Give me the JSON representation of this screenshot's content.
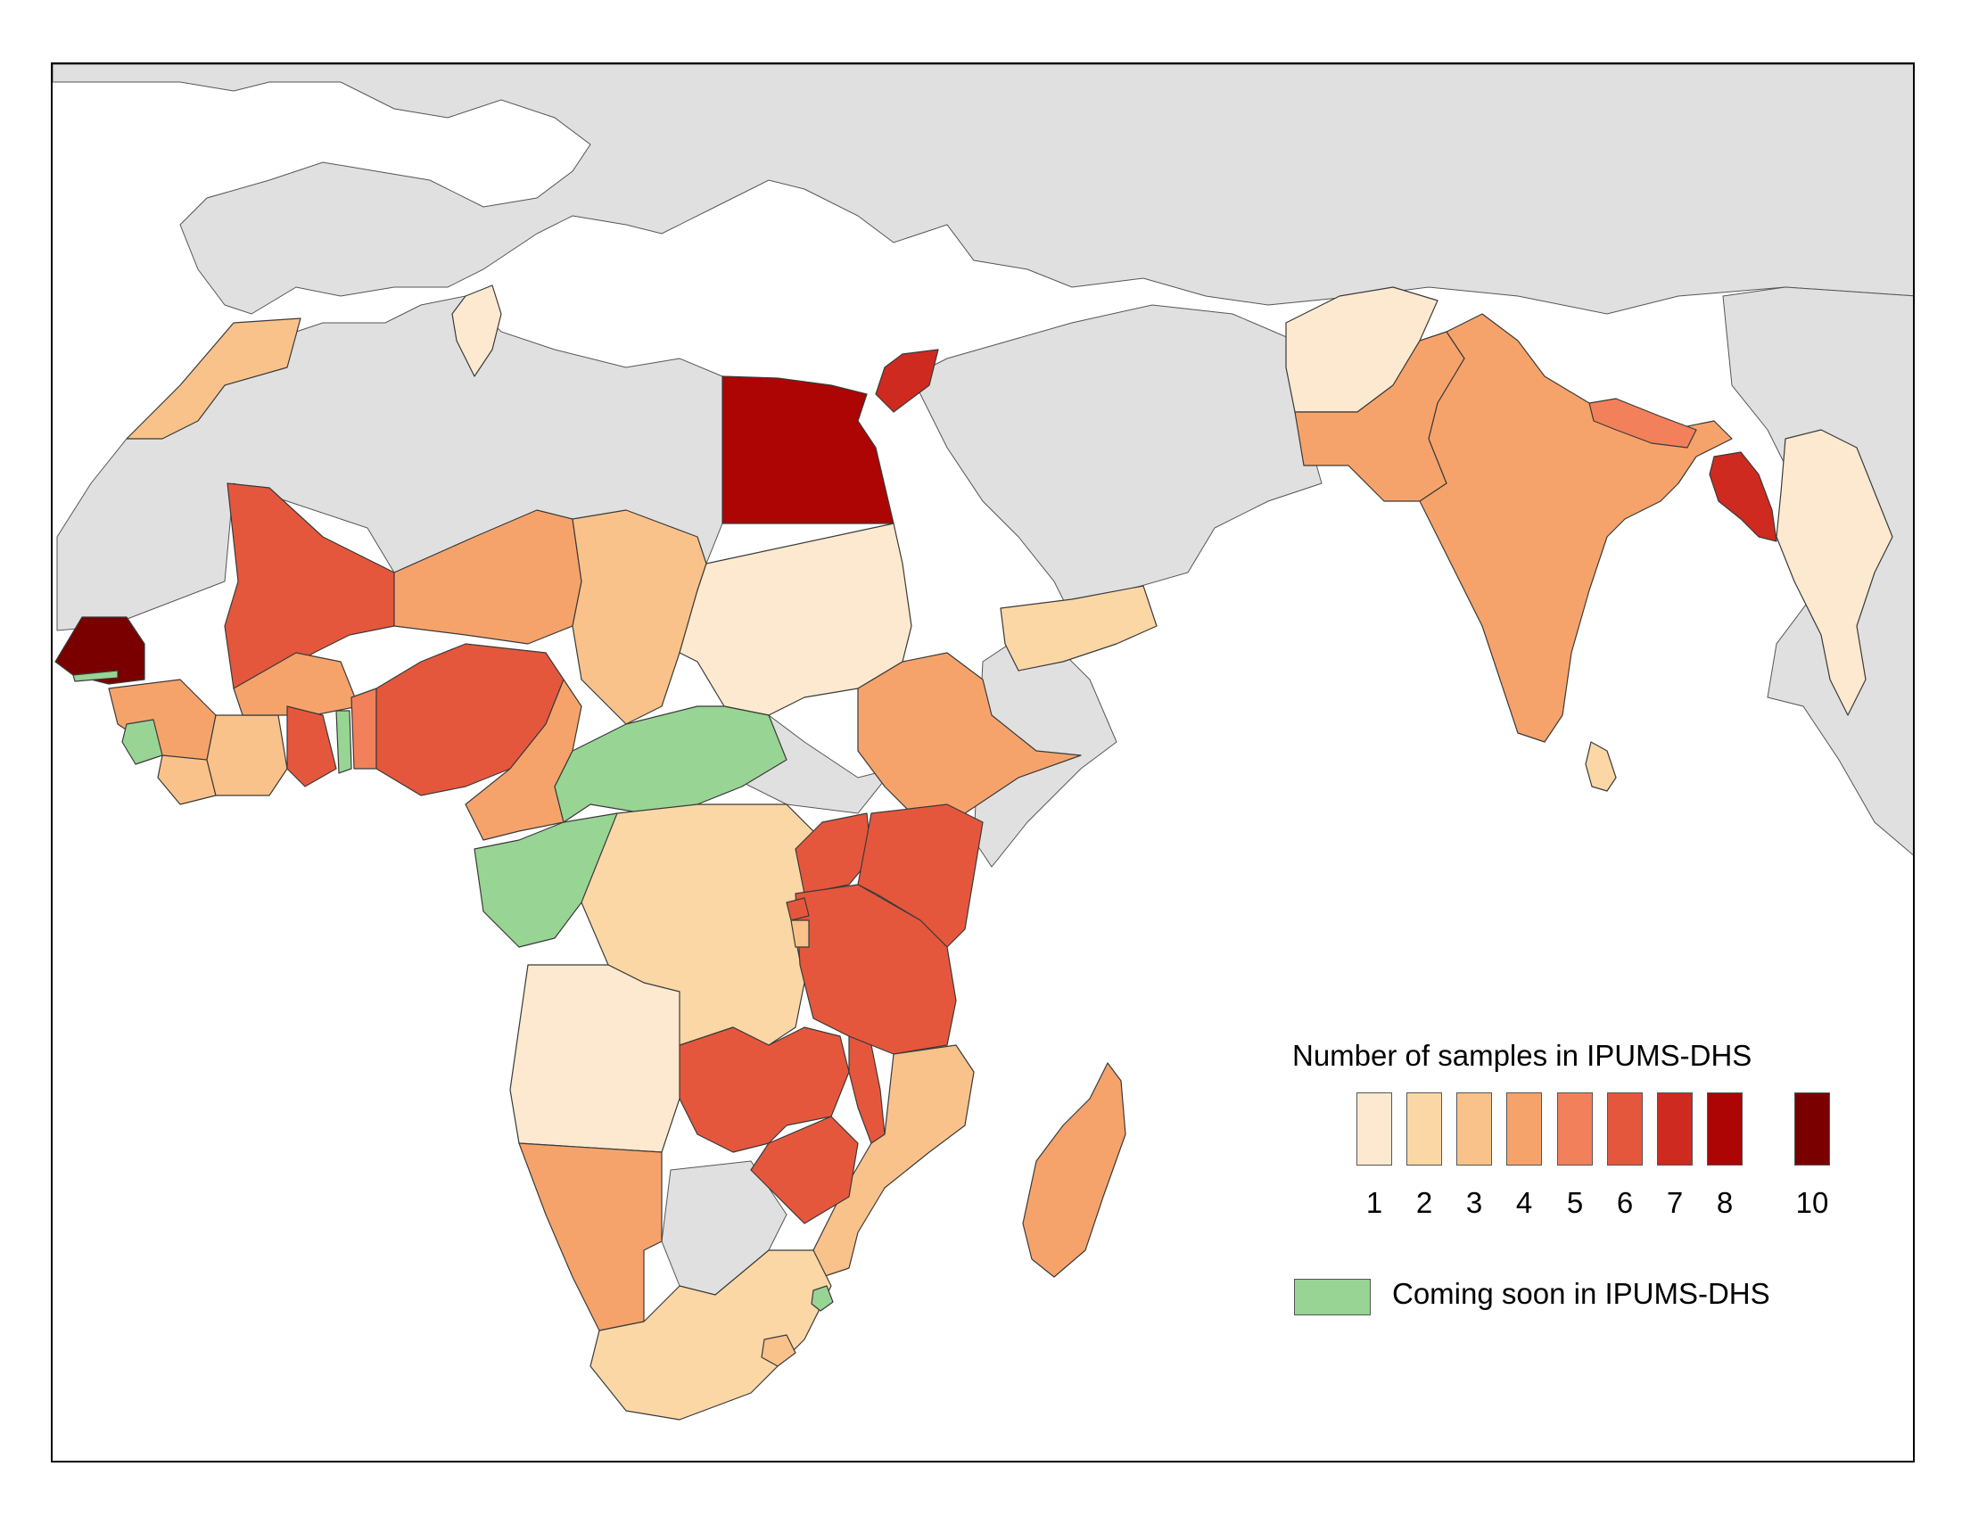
{
  "legend": {
    "title": "Number of samples in IPUMS-DHS",
    "classes": [
      {
        "label": "1",
        "color": "#fde9cf"
      },
      {
        "label": "2",
        "color": "#fbd7a6"
      },
      {
        "label": "3",
        "color": "#f9c28a"
      },
      {
        "label": "4",
        "color": "#f6a36b"
      },
      {
        "label": "5",
        "color": "#f2805a"
      },
      {
        "label": "6",
        "color": "#e5573c"
      },
      {
        "label": "7",
        "color": "#cf2a1f"
      },
      {
        "label": "8",
        "color": "#ad0404"
      },
      {
        "label": "10",
        "color": "#7a0000"
      }
    ],
    "coming_soon": {
      "label": "Coming soon in IPUMS-DHS",
      "color": "#98d494"
    }
  },
  "colors": {
    "no_data": "#e0e0e0",
    "water": "#ffffff",
    "border": "#3a3a3a"
  }
}
